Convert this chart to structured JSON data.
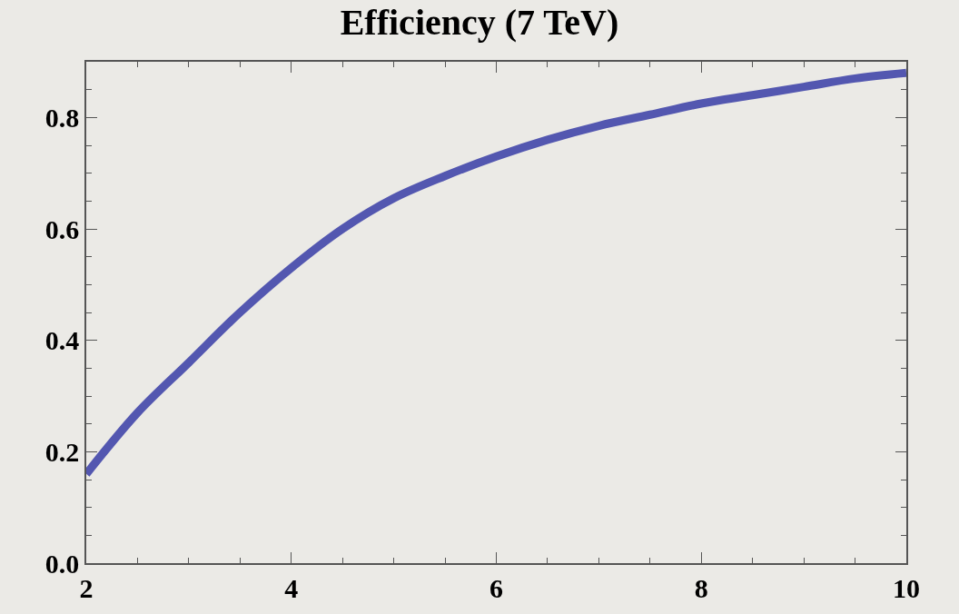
{
  "chart_data": {
    "type": "line",
    "title": "Efficiency (7 TeV)",
    "x": [
      2,
      2.5,
      3,
      3.5,
      4,
      4.5,
      5,
      5.5,
      6,
      6.5,
      7,
      7.5,
      8,
      8.5,
      9,
      9.5,
      10
    ],
    "series": [
      {
        "color": "#5357b0",
        "values": [
          0.16,
          0.27,
          0.36,
          0.45,
          0.53,
          0.6,
          0.655,
          0.695,
          0.73,
          0.76,
          0.785,
          0.805,
          0.825,
          0.84,
          0.855,
          0.87,
          0.88
        ]
      }
    ],
    "xlim": [
      2,
      10
    ],
    "ylim": [
      0,
      0.9
    ],
    "xticks": [
      2,
      4,
      6,
      8,
      10
    ],
    "yticks": [
      {
        "value": 0,
        "label": "0.0"
      },
      0.2,
      0.4,
      0.6,
      0.8
    ],
    "grid": false,
    "marker": "none",
    "line_style": "solid"
  }
}
